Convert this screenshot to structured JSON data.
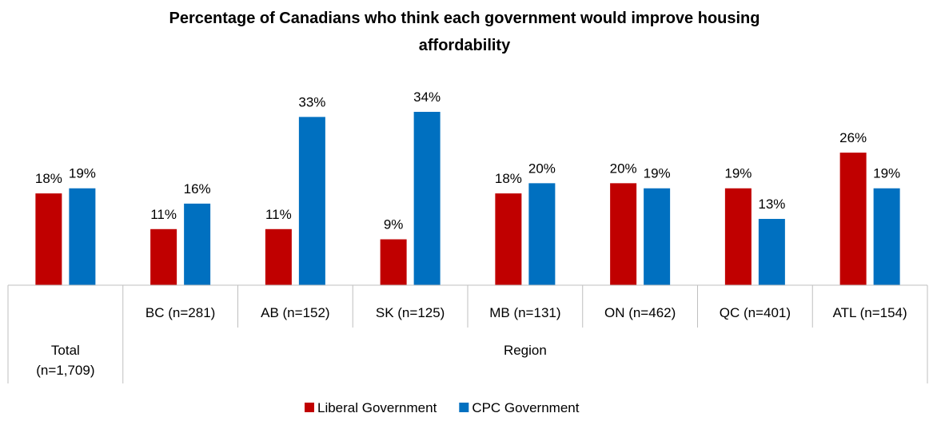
{
  "chart_data": {
    "type": "bar",
    "title": "Percentage of Canadians who think each government would improve housing affordability",
    "title_lines": [
      "Percentage of Canadians who think each government would improve housing",
      "affordability"
    ],
    "groups": [
      {
        "label_lines": [
          "Total",
          "(n=1,709)"
        ],
        "categories": [
          ""
        ]
      },
      {
        "label_lines": [
          "Region"
        ],
        "categories": [
          "BC (n=281)",
          "AB (n=152)",
          "SK (n=125)",
          "MB (n=131)",
          "ON (n=462)",
          "QC (n=401)",
          "ATL (n=154)"
        ]
      }
    ],
    "categories": [
      "Total",
      "BC (n=281)",
      "AB (n=152)",
      "SK (n=125)",
      "MB (n=131)",
      "ON (n=462)",
      "QC (n=401)",
      "ATL (n=154)"
    ],
    "series": [
      {
        "name": "Liberal Government",
        "color": "#C00000",
        "values": [
          18,
          11,
          11,
          9,
          18,
          20,
          19,
          26
        ],
        "labels": [
          "18%",
          "11%",
          "11%",
          "9%",
          "18%",
          "20%",
          "19%",
          "26%"
        ]
      },
      {
        "name": "CPC Government",
        "color": "#0070C0",
        "values": [
          19,
          16,
          33,
          34,
          20,
          19,
          13,
          19
        ],
        "labels": [
          "19%",
          "16%",
          "33%",
          "34%",
          "20%",
          "19%",
          "13%",
          "19%"
        ]
      }
    ],
    "ylim": [
      0,
      34
    ],
    "grid": false,
    "legend_position": "bottom"
  }
}
